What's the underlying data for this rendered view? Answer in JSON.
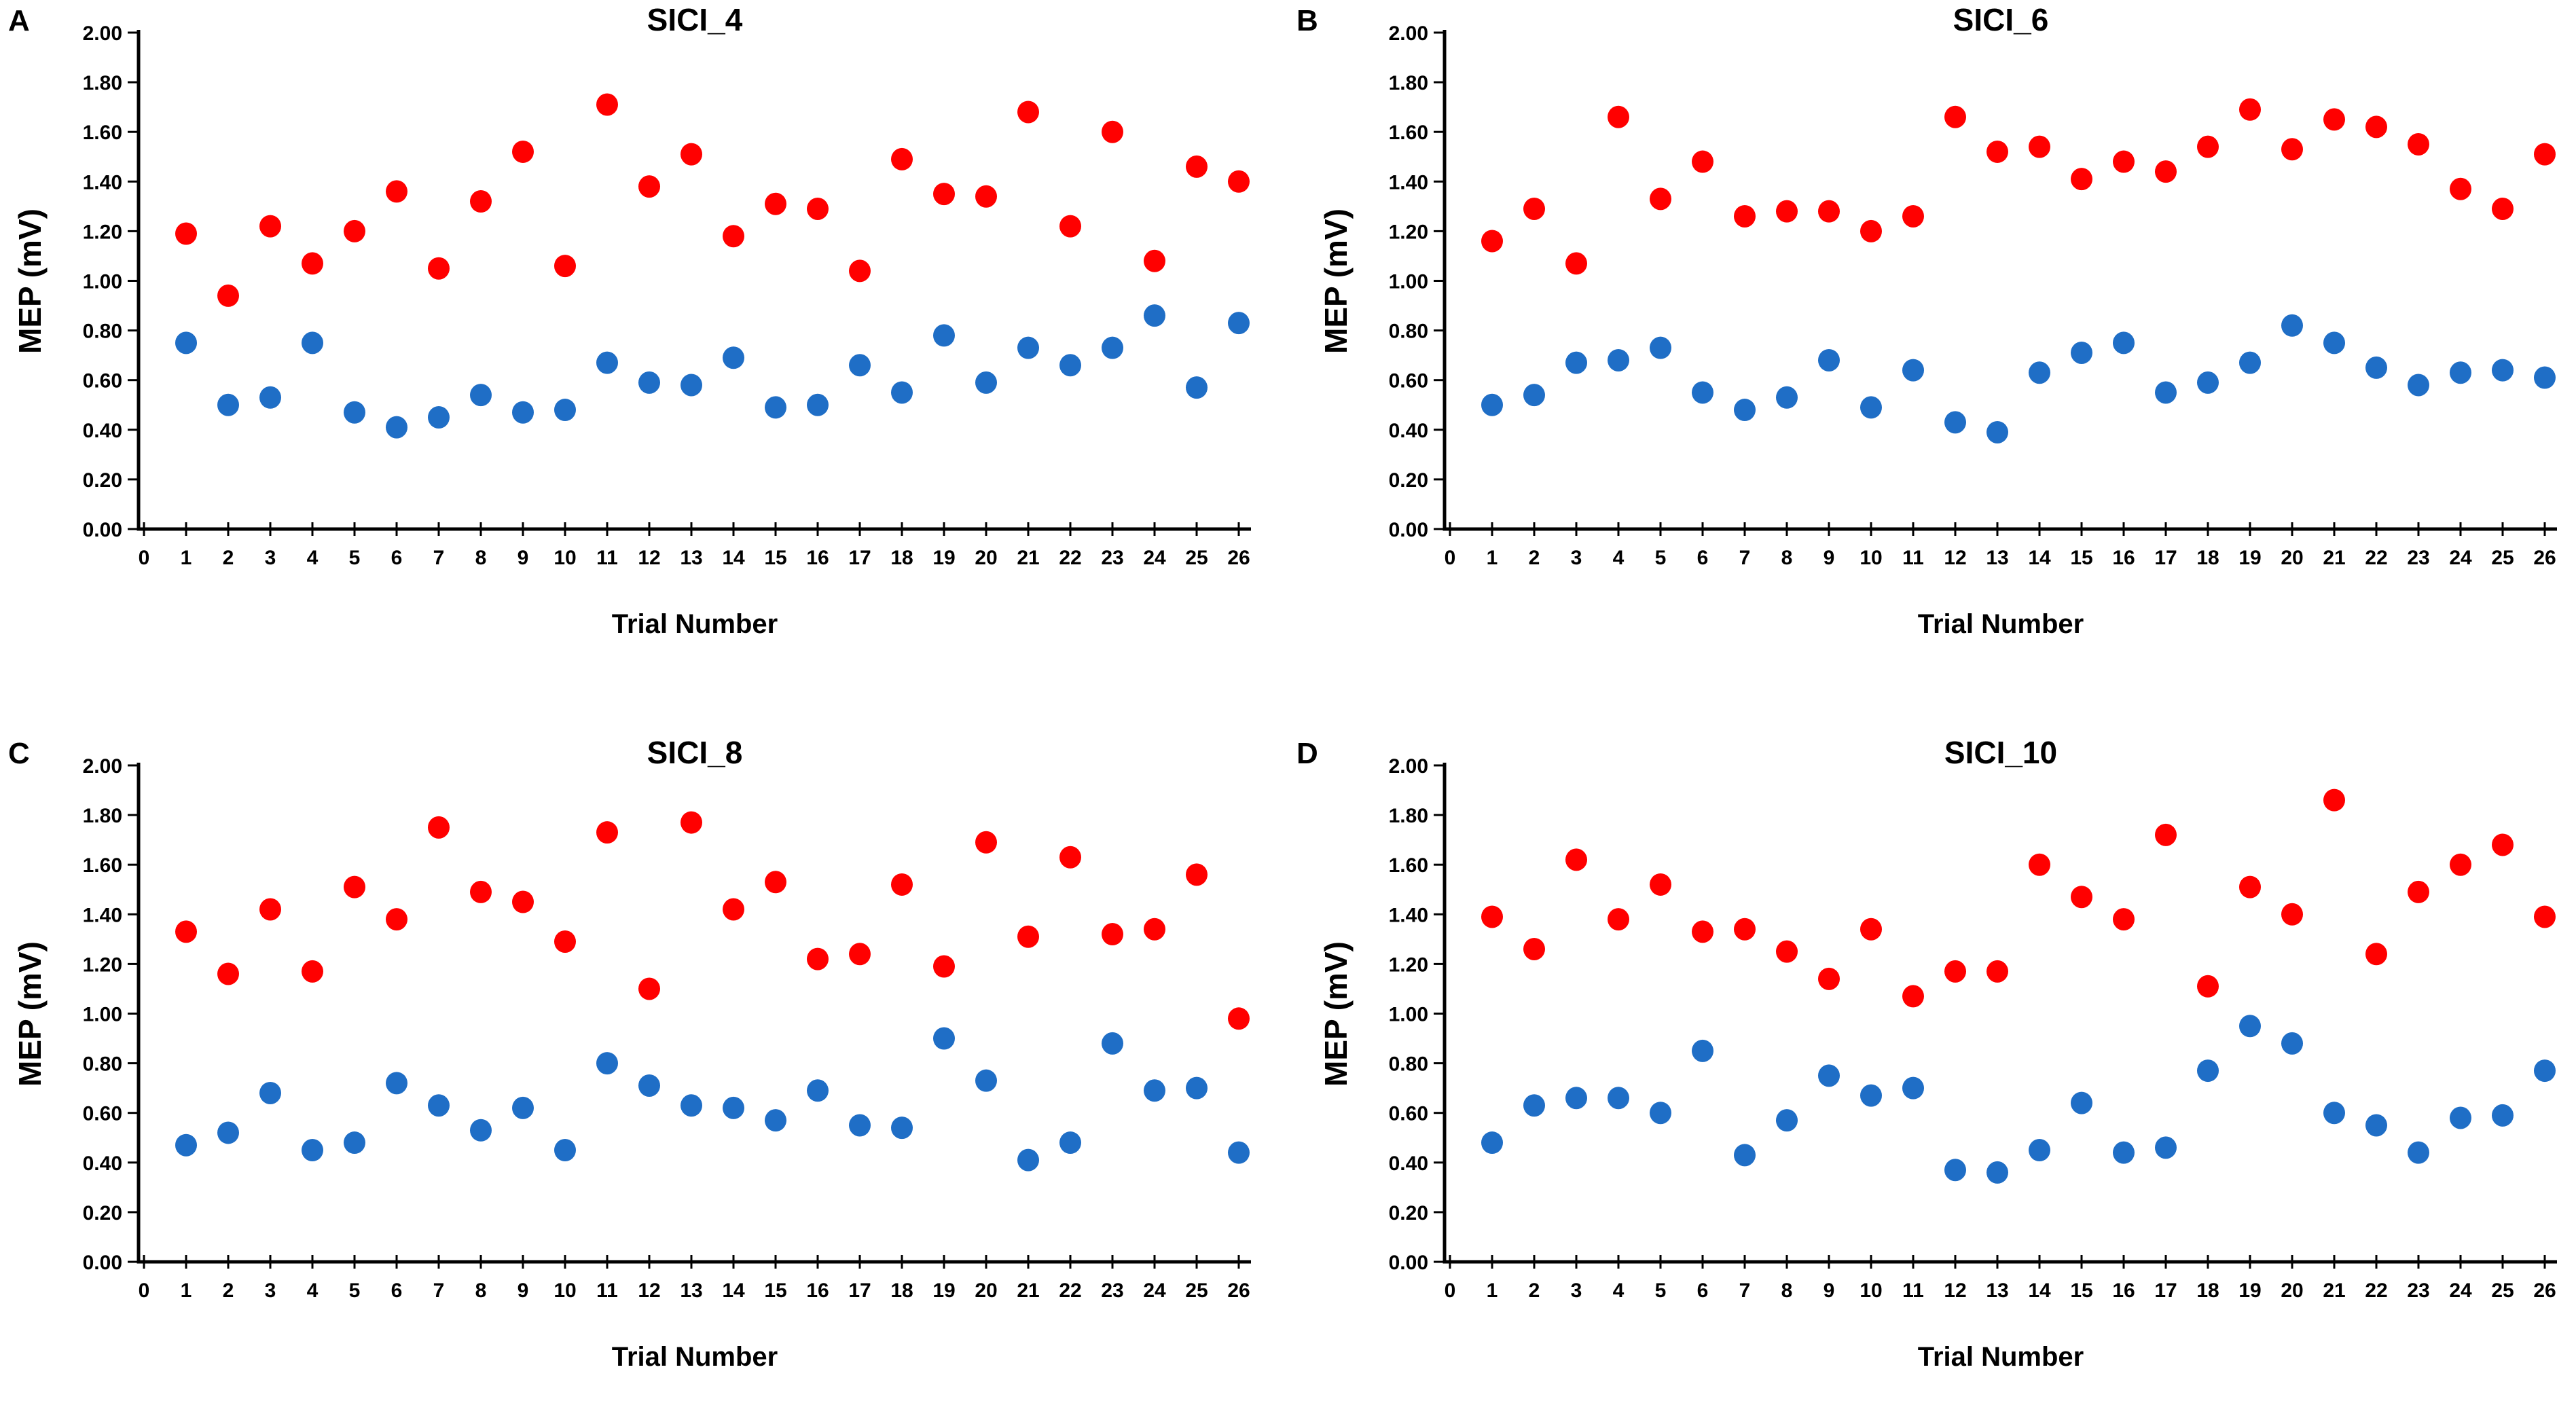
{
  "page": {
    "background": "#FFFFFF"
  },
  "colors": {
    "red_marker": "#FF0000",
    "blue_marker": "#1F6EC6",
    "axis": "#000000",
    "text": "#000000"
  },
  "axes": {
    "xlabel": "Trial Number",
    "ylabel": "MEP (mV)",
    "x_tick_labels": [
      "0",
      "1",
      "2",
      "3",
      "4",
      "5",
      "6",
      "7",
      "8",
      "9",
      "10",
      "11",
      "12",
      "13",
      "14",
      "15",
      "16",
      "17",
      "18",
      "19",
      "20",
      "21",
      "22",
      "23",
      "24",
      "25",
      "26"
    ],
    "y_tick_labels": [
      "0.00",
      "0.20",
      "0.40",
      "0.60",
      "0.80",
      "1.00",
      "1.20",
      "1.40",
      "1.60",
      "1.80",
      "2.00"
    ],
    "ylim": [
      0.0,
      2.0
    ],
    "xlim": [
      0,
      26
    ],
    "grid": "off",
    "legend": "none"
  },
  "chart_data": [
    {
      "type": "scatter",
      "panel_label": "A",
      "title": "SICI_4",
      "xlabel": "Trial Number",
      "ylabel": "MEP (mV)",
      "ylim": [
        0.0,
        2.0
      ],
      "x": [
        1,
        2,
        3,
        4,
        5,
        6,
        7,
        8,
        9,
        10,
        11,
        12,
        13,
        14,
        15,
        16,
        17,
        18,
        19,
        20,
        21,
        22,
        23,
        24,
        25,
        26
      ],
      "series": [
        {
          "name": "red-points",
          "color": "#FF0000",
          "values": [
            1.19,
            0.94,
            1.22,
            1.07,
            1.2,
            1.36,
            1.05,
            1.32,
            1.52,
            1.06,
            1.71,
            1.38,
            1.51,
            1.18,
            1.31,
            1.29,
            1.04,
            1.49,
            1.35,
            1.34,
            1.68,
            1.22,
            1.6,
            1.08,
            1.46,
            1.4
          ]
        },
        {
          "name": "blue-points",
          "color": "#1F6EC6",
          "values": [
            0.75,
            0.5,
            0.53,
            0.75,
            0.47,
            0.41,
            0.45,
            0.54,
            0.47,
            0.48,
            0.67,
            0.59,
            0.58,
            0.69,
            0.49,
            0.5,
            0.66,
            0.55,
            0.78,
            0.59,
            0.73,
            0.66,
            0.73,
            0.86,
            0.57,
            0.83
          ]
        }
      ]
    },
    {
      "type": "scatter",
      "panel_label": "B",
      "title": "SICI_6",
      "xlabel": "Trial Number",
      "ylabel": "MEP (mV)",
      "ylim": [
        0.0,
        2.0
      ],
      "x": [
        1,
        2,
        3,
        4,
        5,
        6,
        7,
        8,
        9,
        10,
        11,
        12,
        13,
        14,
        15,
        16,
        17,
        18,
        19,
        20,
        21,
        22,
        23,
        24,
        25,
        26
      ],
      "series": [
        {
          "name": "red-points",
          "color": "#FF0000",
          "values": [
            1.16,
            1.29,
            1.07,
            1.66,
            1.33,
            1.48,
            1.26,
            1.28,
            1.28,
            1.2,
            1.26,
            1.66,
            1.52,
            1.54,
            1.41,
            1.48,
            1.44,
            1.54,
            1.69,
            1.53,
            1.65,
            1.62,
            1.55,
            1.37,
            1.29,
            1.51
          ]
        },
        {
          "name": "blue-points",
          "color": "#1F6EC6",
          "values": [
            0.5,
            0.54,
            0.67,
            0.68,
            0.73,
            0.55,
            0.48,
            0.53,
            0.68,
            0.49,
            0.64,
            0.43,
            0.39,
            0.63,
            0.71,
            0.75,
            0.55,
            0.59,
            0.67,
            0.82,
            0.75,
            0.65,
            0.58,
            0.63,
            0.64,
            0.61
          ]
        }
      ]
    },
    {
      "type": "scatter",
      "panel_label": "C",
      "title": "SICI_8",
      "xlabel": "Trial Number",
      "ylabel": "MEP (mV)",
      "ylim": [
        0.0,
        2.0
      ],
      "x": [
        1,
        2,
        3,
        4,
        5,
        6,
        7,
        8,
        9,
        10,
        11,
        12,
        13,
        14,
        15,
        16,
        17,
        18,
        19,
        20,
        21,
        22,
        23,
        24,
        25,
        26
      ],
      "series": [
        {
          "name": "red-points",
          "color": "#FF0000",
          "values": [
            1.33,
            1.16,
            1.42,
            1.17,
            1.51,
            1.38,
            1.75,
            1.49,
            1.45,
            1.29,
            1.73,
            1.1,
            1.77,
            1.42,
            1.53,
            1.22,
            1.24,
            1.52,
            1.19,
            1.69,
            1.31,
            1.63,
            1.32,
            1.34,
            1.56,
            0.98
          ]
        },
        {
          "name": "blue-points",
          "color": "#1F6EC6",
          "values": [
            0.47,
            0.52,
            0.68,
            0.45,
            0.48,
            0.72,
            0.63,
            0.53,
            0.62,
            0.45,
            0.8,
            0.71,
            0.63,
            0.62,
            0.57,
            0.69,
            0.55,
            0.54,
            0.9,
            0.73,
            0.41,
            0.48,
            0.88,
            0.69,
            0.7,
            0.44
          ]
        }
      ]
    },
    {
      "type": "scatter",
      "panel_label": "D",
      "title": "SICI_10",
      "xlabel": "Trial Number",
      "ylabel": "MEP (mV)",
      "ylim": [
        0.0,
        2.0
      ],
      "x": [
        1,
        2,
        3,
        4,
        5,
        6,
        7,
        8,
        9,
        10,
        11,
        12,
        13,
        14,
        15,
        16,
        17,
        18,
        19,
        20,
        21,
        22,
        23,
        24,
        25,
        26
      ],
      "series": [
        {
          "name": "red-points",
          "color": "#FF0000",
          "values": [
            1.39,
            1.26,
            1.62,
            1.38,
            1.52,
            1.33,
            1.34,
            1.25,
            1.14,
            1.34,
            1.07,
            1.17,
            1.17,
            1.6,
            1.47,
            1.38,
            1.72,
            1.11,
            1.51,
            1.4,
            1.86,
            1.24,
            1.49,
            1.6,
            1.68,
            1.39
          ]
        },
        {
          "name": "blue-points",
          "color": "#1F6EC6",
          "values": [
            0.48,
            0.63,
            0.66,
            0.66,
            0.6,
            0.85,
            0.43,
            0.57,
            0.75,
            0.67,
            0.7,
            0.37,
            0.36,
            0.45,
            0.64,
            0.44,
            0.46,
            0.77,
            0.95,
            0.88,
            0.6,
            0.55,
            0.44,
            0.58,
            0.59,
            0.77
          ]
        }
      ]
    }
  ]
}
